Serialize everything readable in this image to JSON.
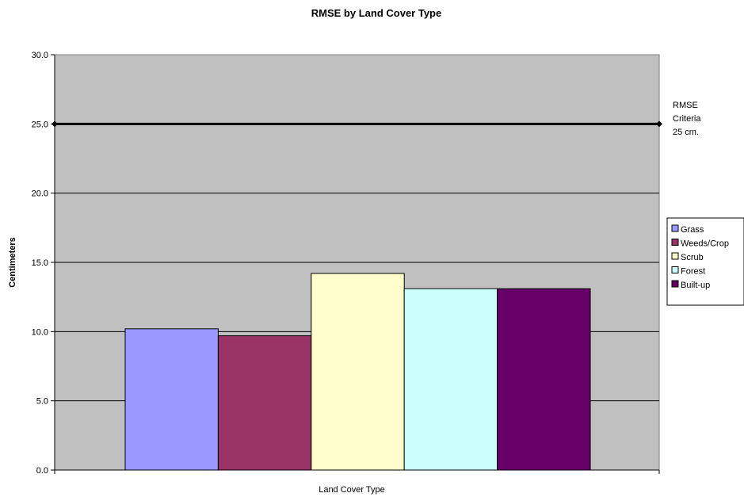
{
  "chart_data": {
    "type": "bar",
    "title": "RMSE by Land Cover Type",
    "xlabel": "Land Cover Type",
    "ylabel": "Centimeters",
    "ylim": [
      0,
      30
    ],
    "yticks": [
      "0.0",
      "5.0",
      "10.0",
      "15.0",
      "20.0",
      "25.0",
      "30.0"
    ],
    "grid": true,
    "legend_position": "right",
    "plot_background": "#c0c0c0",
    "series": [
      {
        "name": "Grass",
        "values": [
          10.2
        ],
        "color": "#9999ff"
      },
      {
        "name": "Weeds/Crop",
        "values": [
          9.7
        ],
        "color": "#993366"
      },
      {
        "name": "Scrub",
        "values": [
          14.2
        ],
        "color": "#ffffcc"
      },
      {
        "name": "Forest",
        "values": [
          13.1
        ],
        "color": "#ccffff"
      },
      {
        "name": "Built-up",
        "values": [
          13.1
        ],
        "color": "#660066"
      }
    ],
    "reference_line": {
      "value": 25,
      "label_lines": [
        "RMSE",
        "Criteria",
        "25 cm."
      ]
    }
  }
}
